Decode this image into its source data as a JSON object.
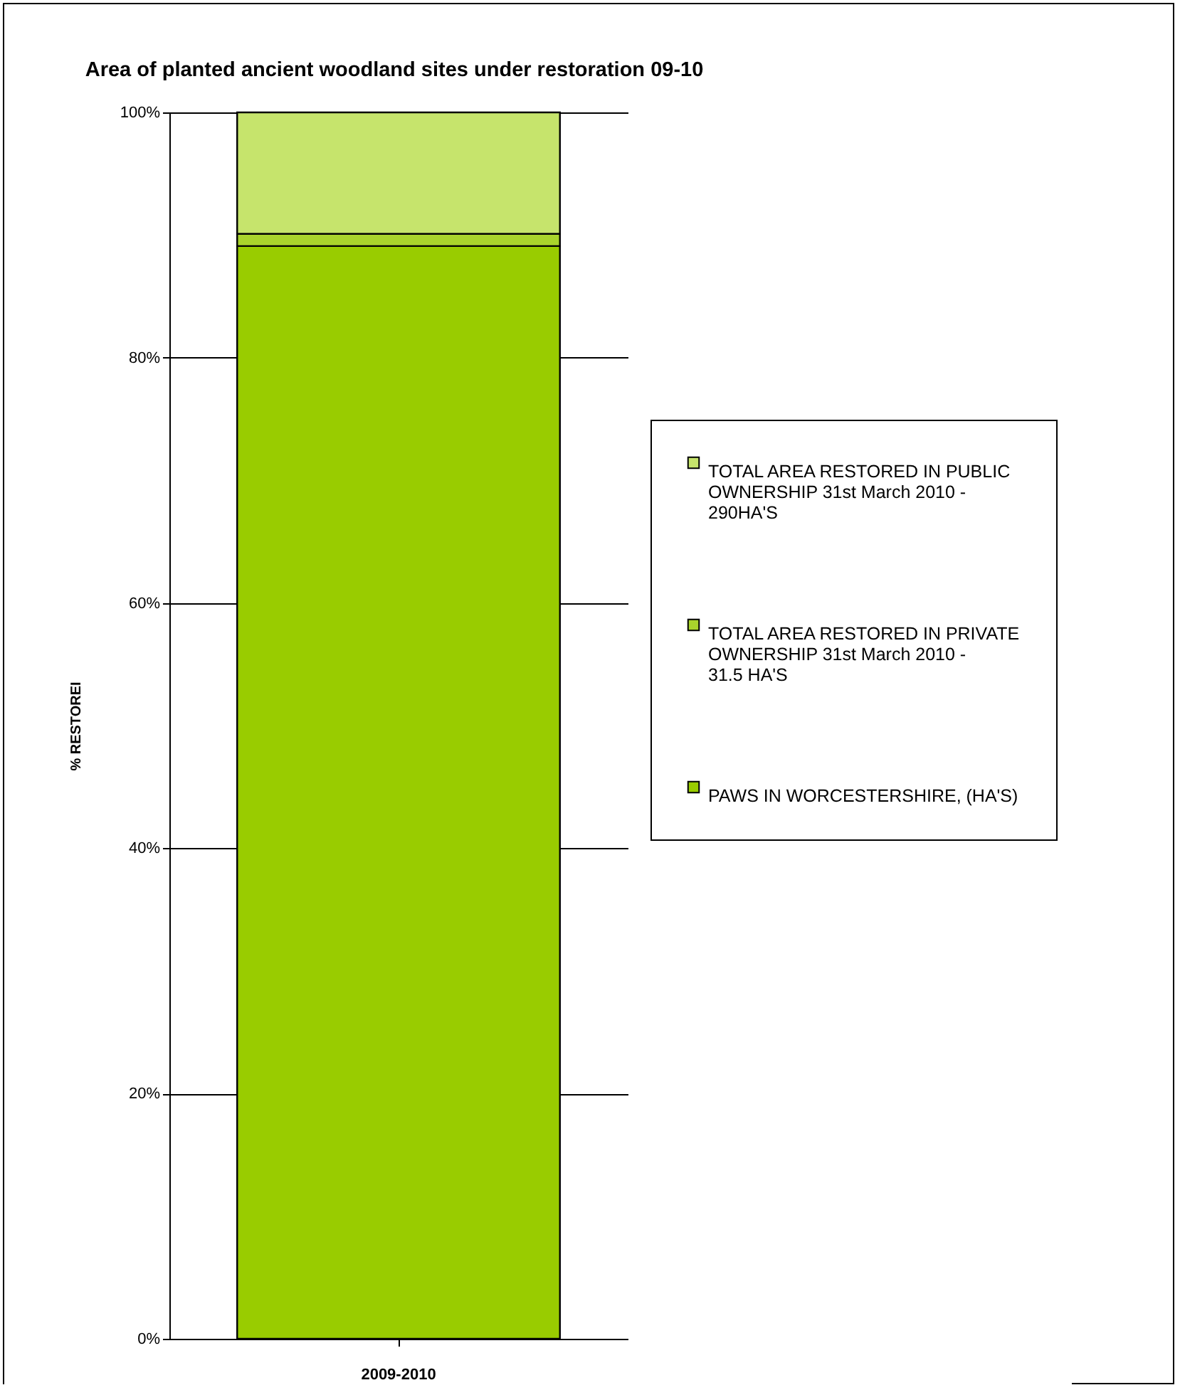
{
  "chart_data": {
    "type": "bar",
    "title": "Area of planted ancient woodland sites under restoration 09-10",
    "ylabel": "% RESTOREI",
    "categories": [
      "2009-2010"
    ],
    "stacked": true,
    "ylim": [
      0,
      100
    ],
    "yticks": [
      {
        "value": 0,
        "label": "0%"
      },
      {
        "value": 20,
        "label": "20%"
      },
      {
        "value": 40,
        "label": "40%"
      },
      {
        "value": 60,
        "label": "60%"
      },
      {
        "value": 80,
        "label": "80%"
      },
      {
        "value": 100,
        "label": "100%"
      }
    ],
    "grid": "y",
    "legend": "right",
    "series": [
      {
        "name": "PAWS IN WORCESTERSHIRE, (HA'S)",
        "color": "#99cc00",
        "values": [
          89.1
        ]
      },
      {
        "name": "TOTAL AREA RESTORED IN PRIVATE OWNERSHIP 31st March 2010 - 31.5 HA'S",
        "color": "#a9d42c",
        "values": [
          1.0
        ]
      },
      {
        "name": "TOTAL AREA RESTORED IN PUBLIC OWNERSHIP 31st March 2010 - 290HA'S",
        "color": "#c6e46c",
        "values": [
          9.9
        ]
      }
    ]
  }
}
